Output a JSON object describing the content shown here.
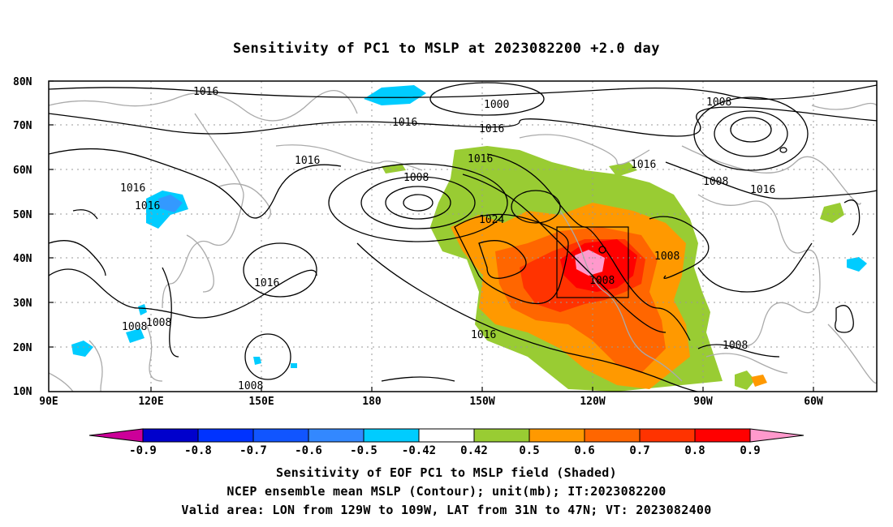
{
  "title": "Sensitivity of PC1 to MSLP at 2023082200 +2.0 day",
  "map": {
    "lon_labels": [
      "90E",
      "120E",
      "150E",
      "180",
      "150W",
      "120W",
      "90W",
      "60W"
    ],
    "lat_labels": [
      "80N",
      "70N",
      "60N",
      "50N",
      "40N",
      "30N",
      "20N",
      "10N"
    ],
    "contour_labels": [
      "1016",
      "1016",
      "1016",
      "1016",
      "1016",
      "1016",
      "1016",
      "1016",
      "1016",
      "1016",
      "1016",
      "1008",
      "1008",
      "1008",
      "1008",
      "1008",
      "1008",
      "1008",
      "1008",
      "1008",
      "1000",
      "1024"
    ],
    "colors": {
      "land": "#b0b0b0",
      "contour": "#000000",
      "green": "#99cc33",
      "orange": "#ff9900",
      "dark_orange": "#ff6600",
      "red_orange": "#ff3300",
      "red": "#ff0000",
      "pink": "#ff99cc",
      "light_blue": "#00ccff",
      "mid_blue": "#3399ff"
    }
  },
  "colorbar": {
    "labels": [
      "-0.9",
      "-0.8",
      "-0.7",
      "-0.6",
      "-0.5",
      "-0.42",
      "0.42",
      "0.5",
      "0.6",
      "0.7",
      "0.8",
      "0.9"
    ],
    "colors": [
      "#cc0099",
      "#0000cc",
      "#0033ff",
      "#1155ff",
      "#3388ff",
      "#00ccff",
      "#ffffff",
      "#99cc33",
      "#ff9900",
      "#ff6600",
      "#ff3300",
      "#ff0000",
      "#ff99cc"
    ]
  },
  "caption": {
    "line1": "Sensitivity of EOF PC1 to MSLP field (Shaded)",
    "line2": "NCEP ensemble mean MSLP (Contour); unit(mb); IT:2023082200",
    "line3": "Valid area: LON from 129W to 109W, LAT from 31N to 47N; VT: 2023082400"
  }
}
